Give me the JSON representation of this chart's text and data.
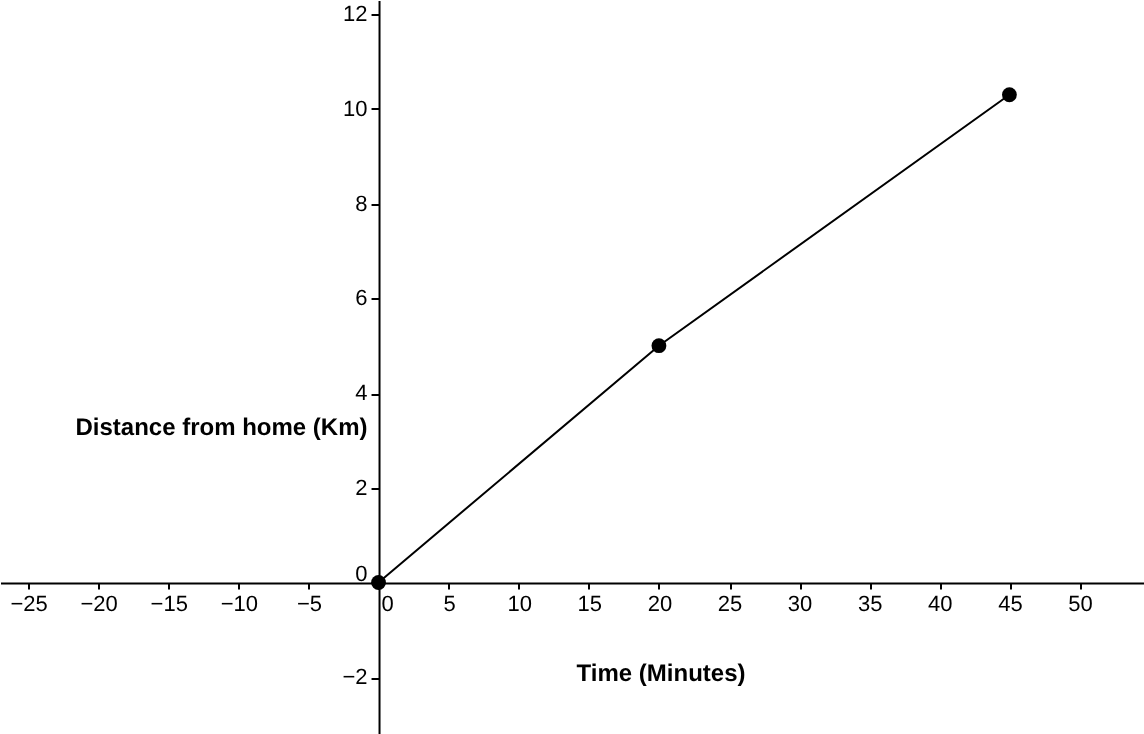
{
  "chart_data": {
    "type": "line",
    "xlabel": "Time (Minutes)",
    "ylabel": "Distance from home (Km)",
    "x": [
      0,
      20,
      45
    ],
    "series": [
      {
        "color": "#000000",
        "values": [
          0,
          5,
          10.3
        ]
      }
    ],
    "xlim": [
      -27,
      54.6
    ],
    "ylim": [
      -3.2,
      12.3
    ],
    "xticks": [
      -25,
      -20,
      -15,
      -10,
      -5,
      0,
      5,
      10,
      15,
      20,
      25,
      30,
      35,
      40,
      45,
      50
    ],
    "yticks": [
      -2,
      0,
      2,
      4,
      6,
      8,
      10,
      12
    ],
    "marker": "circle",
    "line_style": "solid"
  }
}
